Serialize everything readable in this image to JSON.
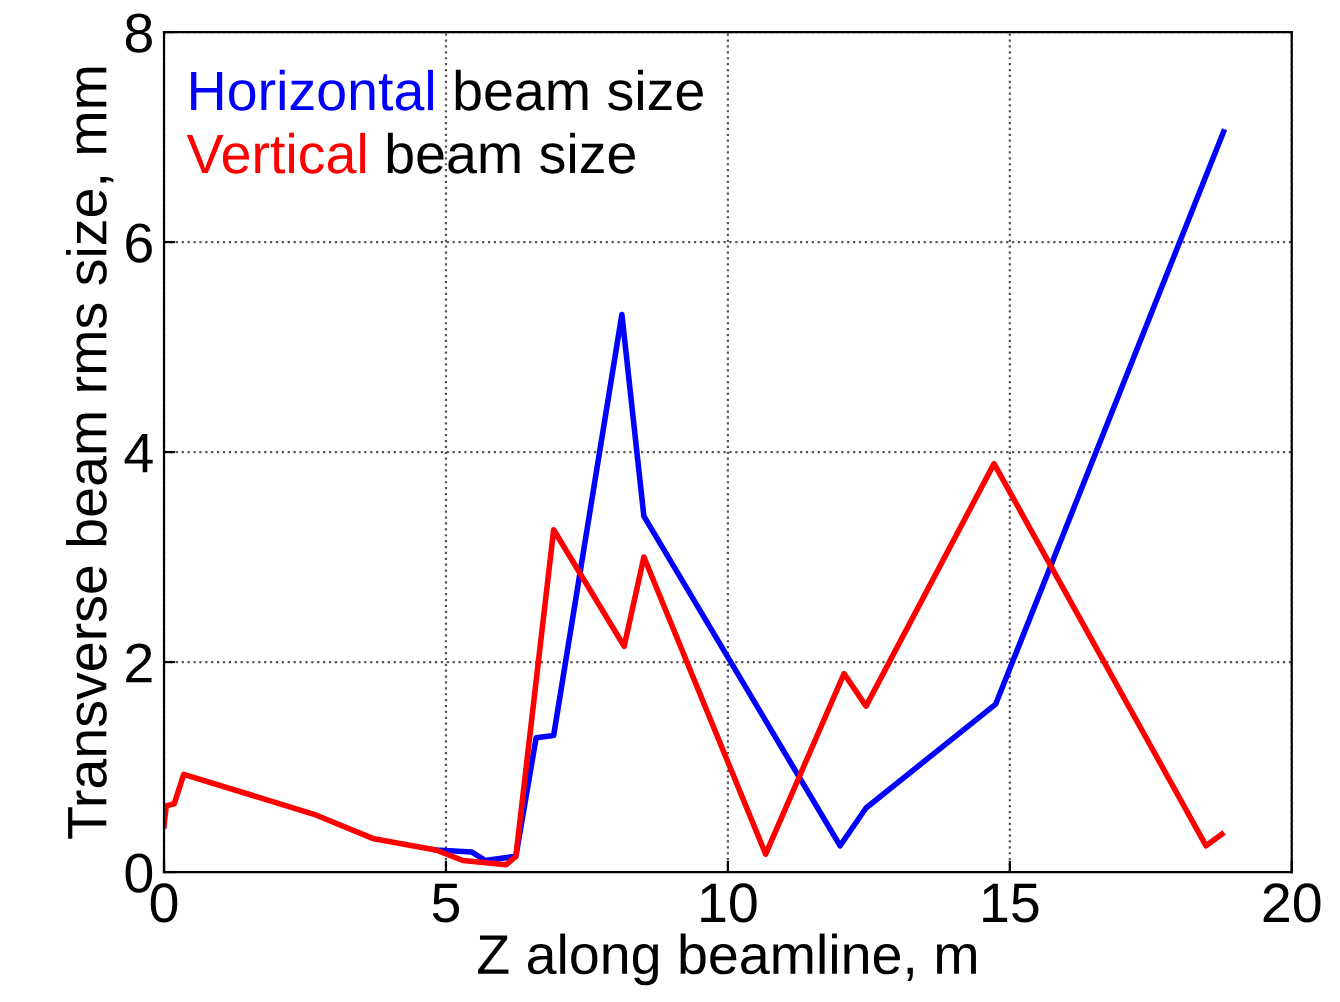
{
  "chart_data": {
    "type": "line",
    "xlabel": "Z along beamline, m",
    "ylabel": "Transverse beam rms size, mm",
    "xlim": [
      0,
      20
    ],
    "ylim": [
      0,
      8
    ],
    "xticks": [
      0,
      5,
      10,
      15,
      20
    ],
    "yticks": [
      0,
      2,
      4,
      6,
      8
    ],
    "grid": true,
    "legend": "top left",
    "line_style": "solid",
    "marker": "none",
    "series": [
      {
        "name": "Horizontal beam size",
        "color": "#0000ff",
        "x": [
          4.82,
          5.46,
          5.7,
          6.24,
          6.6,
          6.91,
          8.12,
          8.51,
          11.99,
          12.45,
          14.75,
          18.79
        ],
        "values": [
          0.21,
          0.19,
          0.11,
          0.15,
          1.28,
          1.3,
          5.31,
          3.39,
          0.25,
          0.61,
          1.6,
          7.05
        ]
      },
      {
        "name": "Vertical beam size",
        "color": "#ff0000",
        "x": [
          0,
          0.04,
          0.18,
          0.35,
          2.66,
          3.7,
          4.82,
          5.3,
          6.07,
          6.24,
          6.91,
          8.16,
          8.51,
          10.67,
          12.06,
          12.45,
          14.72,
          18.48,
          18.76
        ],
        "values": [
          0.44,
          0.63,
          0.65,
          0.93,
          0.55,
          0.32,
          0.21,
          0.11,
          0.07,
          0.15,
          3.26,
          2.15,
          3.0,
          0.17,
          1.89,
          1.58,
          3.89,
          0.25,
          0.36
        ]
      }
    ]
  }
}
